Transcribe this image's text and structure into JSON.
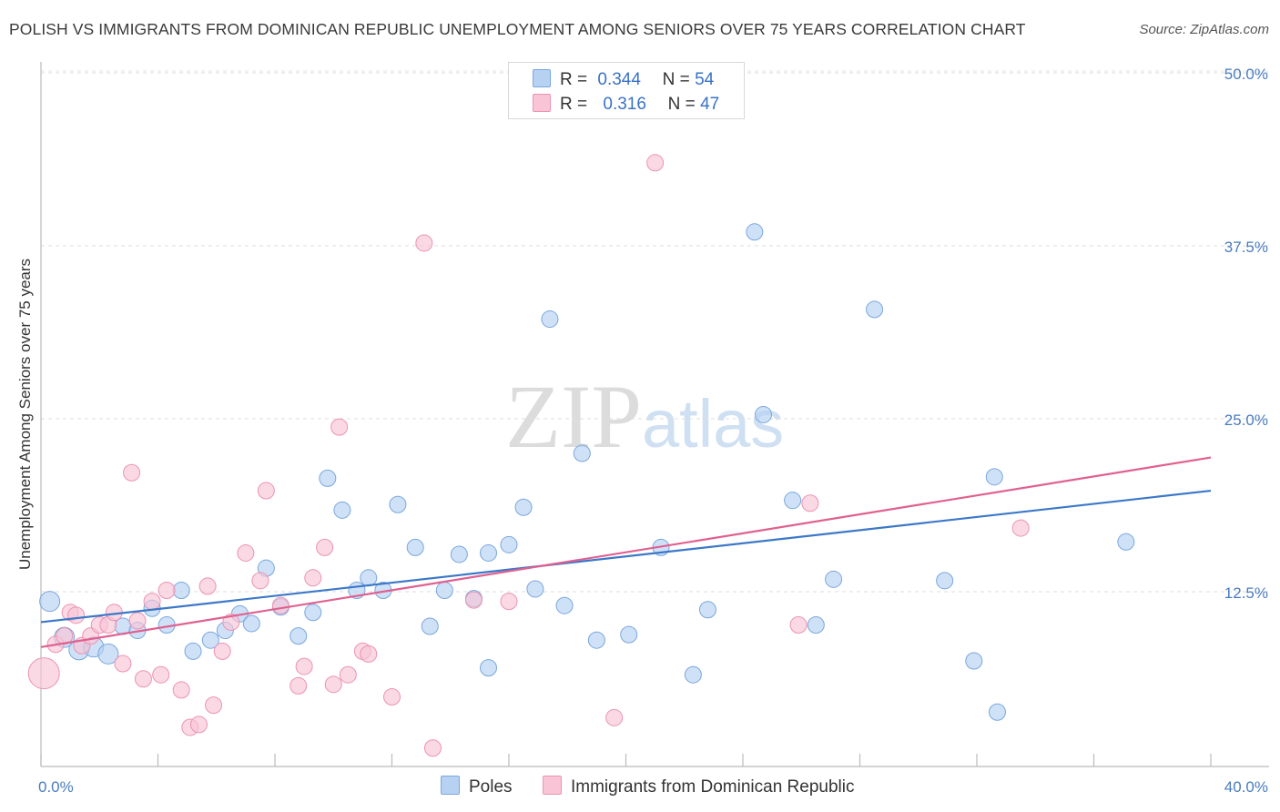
{
  "header": {
    "title": "POLISH VS IMMIGRANTS FROM DOMINICAN REPUBLIC UNEMPLOYMENT AMONG SENIORS OVER 75 YEARS CORRELATION CHART",
    "source": "Source: ZipAtlas.com"
  },
  "watermark": {
    "zip": "ZIP",
    "atlas": "atlas"
  },
  "legend": {
    "r_label": "R =",
    "n_label": "N =",
    "rows": [
      {
        "r": "0.344",
        "n": "54",
        "color": "#b6d1f2"
      },
      {
        "r": "0.316",
        "n": "47",
        "color": "#f8c4d6"
      }
    ]
  },
  "chart_data": {
    "type": "scatter",
    "title": "POLISH VS IMMIGRANTS FROM DOMINICAN REPUBLIC UNEMPLOYMENT AMONG SENIORS OVER 75 YEARS CORRELATION CHART",
    "xlabel": "",
    "ylabel": "Unemployment Among Seniors over 75 years",
    "xlim": [
      0,
      40
    ],
    "ylim": [
      0,
      50
    ],
    "x_tick_labels": [
      "0.0%",
      "40.0%"
    ],
    "y_ticks": [
      12.5,
      25.0,
      37.5,
      50.0
    ],
    "y_tick_labels": [
      "12.5%",
      "25.0%",
      "37.5%",
      "50.0%"
    ],
    "grid": true,
    "series": [
      {
        "name": "Poles",
        "color": "#b6d1f2",
        "stroke": "#7aa7dc",
        "trend_color": "#3c78c8",
        "trend": [
          [
            0,
            10.3
          ],
          [
            40,
            19.8
          ]
        ],
        "points": [
          [
            0.3,
            11.8
          ],
          [
            0.8,
            9.2
          ],
          [
            1.3,
            8.3
          ],
          [
            1.8,
            8.5
          ],
          [
            2.3,
            8.0
          ],
          [
            2.8,
            10.0
          ],
          [
            3.3,
            9.7
          ],
          [
            3.8,
            11.3
          ],
          [
            4.3,
            10.1
          ],
          [
            4.8,
            12.6
          ],
          [
            5.2,
            8.2
          ],
          [
            5.8,
            9.0
          ],
          [
            6.3,
            9.7
          ],
          [
            6.8,
            10.9
          ],
          [
            7.2,
            10.2
          ],
          [
            7.7,
            14.2
          ],
          [
            8.2,
            11.4
          ],
          [
            8.8,
            9.3
          ],
          [
            9.3,
            11.0
          ],
          [
            9.8,
            20.7
          ],
          [
            10.3,
            18.4
          ],
          [
            10.8,
            12.6
          ],
          [
            11.2,
            13.5
          ],
          [
            11.7,
            12.6
          ],
          [
            12.2,
            18.8
          ],
          [
            12.8,
            15.7
          ],
          [
            13.3,
            10.0
          ],
          [
            13.8,
            12.6
          ],
          [
            14.3,
            15.2
          ],
          [
            14.8,
            12.0
          ],
          [
            15.3,
            7.0
          ],
          [
            15.3,
            15.3
          ],
          [
            16.0,
            15.9
          ],
          [
            16.5,
            18.6
          ],
          [
            16.9,
            12.7
          ],
          [
            17.4,
            32.2
          ],
          [
            17.9,
            11.5
          ],
          [
            18.5,
            22.5
          ],
          [
            19.0,
            9.0
          ],
          [
            20.1,
            9.4
          ],
          [
            21.2,
            15.7
          ],
          [
            22.3,
            6.5
          ],
          [
            22.8,
            11.2
          ],
          [
            24.4,
            38.5
          ],
          [
            24.7,
            25.3
          ],
          [
            25.7,
            19.1
          ],
          [
            26.5,
            10.1
          ],
          [
            27.1,
            13.4
          ],
          [
            28.5,
            32.9
          ],
          [
            30.9,
            13.3
          ],
          [
            31.9,
            7.5
          ],
          [
            32.6,
            20.8
          ],
          [
            32.7,
            3.8
          ],
          [
            37.1,
            16.1
          ]
        ]
      },
      {
        "name": "Immigrants from Dominican Republic",
        "color": "#f8c4d6",
        "stroke": "#ec93b2",
        "trend_color": "#e0608f",
        "trend": [
          [
            0,
            8.5
          ],
          [
            40,
            22.2
          ]
        ],
        "points": [
          [
            0.1,
            6.6
          ],
          [
            0.5,
            8.7
          ],
          [
            0.8,
            9.3
          ],
          [
            1.0,
            11.0
          ],
          [
            1.2,
            10.8
          ],
          [
            1.4,
            8.6
          ],
          [
            1.7,
            9.3
          ],
          [
            2.0,
            10.1
          ],
          [
            2.3,
            10.1
          ],
          [
            2.5,
            11.0
          ],
          [
            2.8,
            7.3
          ],
          [
            3.1,
            21.1
          ],
          [
            3.3,
            10.4
          ],
          [
            3.5,
            6.2
          ],
          [
            3.8,
            11.8
          ],
          [
            4.1,
            6.5
          ],
          [
            4.3,
            12.6
          ],
          [
            4.8,
            5.4
          ],
          [
            5.1,
            2.7
          ],
          [
            5.4,
            2.9
          ],
          [
            5.7,
            12.9
          ],
          [
            5.9,
            4.3
          ],
          [
            6.2,
            8.2
          ],
          [
            6.5,
            10.3
          ],
          [
            7.0,
            15.3
          ],
          [
            7.5,
            13.3
          ],
          [
            7.7,
            19.8
          ],
          [
            8.2,
            11.5
          ],
          [
            8.8,
            5.7
          ],
          [
            9.0,
            7.1
          ],
          [
            9.3,
            13.5
          ],
          [
            9.7,
            15.7
          ],
          [
            10.0,
            5.8
          ],
          [
            10.2,
            24.4
          ],
          [
            10.5,
            6.5
          ],
          [
            11.0,
            8.2
          ],
          [
            11.2,
            8.0
          ],
          [
            12.0,
            4.9
          ],
          [
            13.1,
            37.7
          ],
          [
            13.4,
            1.2
          ],
          [
            14.8,
            11.9
          ],
          [
            16.0,
            11.8
          ],
          [
            19.6,
            3.4
          ],
          [
            21.0,
            43.5
          ],
          [
            25.9,
            10.1
          ],
          [
            26.3,
            18.9
          ],
          [
            33.5,
            17.1
          ]
        ]
      }
    ]
  }
}
